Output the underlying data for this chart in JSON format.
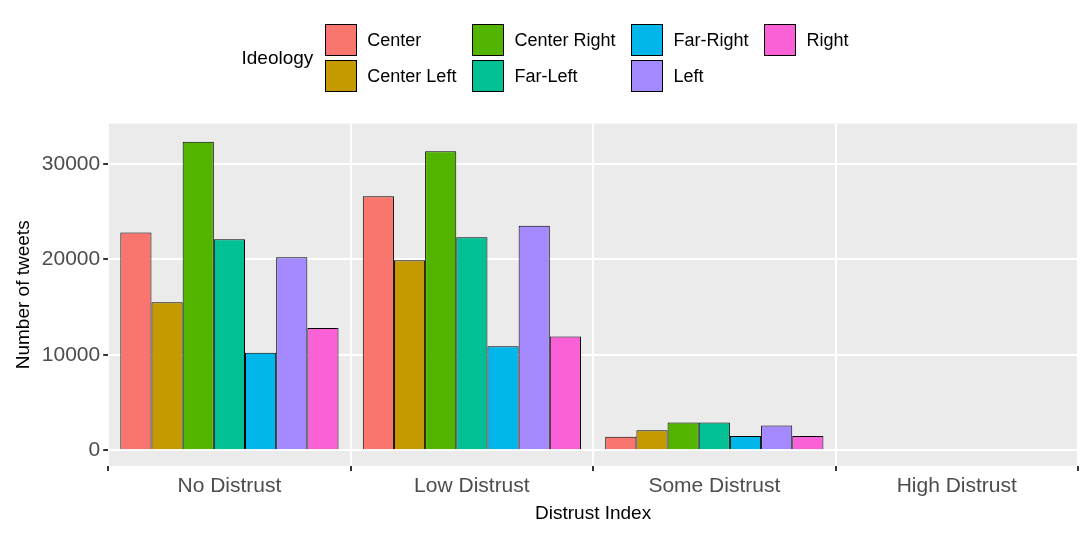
{
  "chart_data": {
    "type": "bar",
    "xlabel": "Distrust Index",
    "ylabel": "Number of tweets",
    "legend_title": "Ideology",
    "legend": "top",
    "categories": [
      "No Distrust",
      "Low Distrust",
      "Some Distrust",
      "High Distrust"
    ],
    "series": [
      {
        "name": "Center",
        "color": "#f8766d",
        "values": [
          22800,
          26600,
          1400,
          0
        ]
      },
      {
        "name": "Center Left",
        "color": "#c49a00",
        "values": [
          15500,
          19900,
          2100,
          0
        ]
      },
      {
        "name": "Center Right",
        "color": "#53b400",
        "values": [
          32300,
          31300,
          2900,
          0
        ]
      },
      {
        "name": "Far-Left",
        "color": "#00c094",
        "values": [
          22100,
          22300,
          2900,
          0
        ]
      },
      {
        "name": "Far-Right",
        "color": "#00b6eb",
        "values": [
          10200,
          10900,
          1500,
          0
        ]
      },
      {
        "name": "Left",
        "color": "#a58aff",
        "values": [
          20200,
          23500,
          2600,
          0
        ]
      },
      {
        "name": "Right",
        "color": "#fb61d7",
        "values": [
          12800,
          11900,
          1500,
          0
        ]
      }
    ],
    "ylim": [
      -1650,
      34200
    ],
    "yticks": [
      0,
      10000,
      20000,
      30000
    ],
    "grid": true
  }
}
